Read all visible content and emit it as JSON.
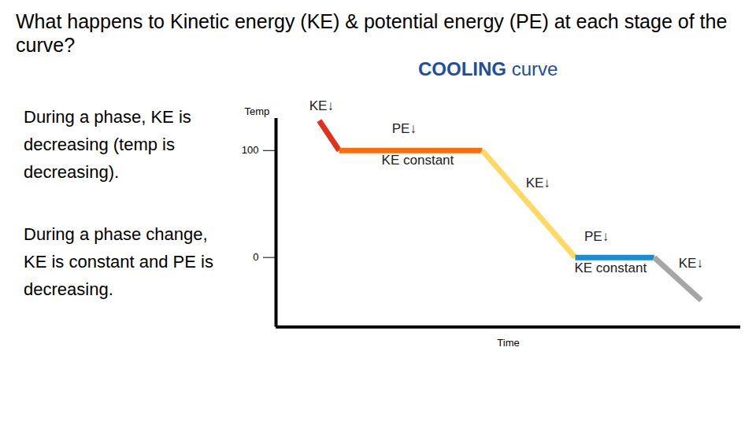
{
  "chart_data": {
    "type": "line",
    "title": "What happens to Kinetic energy (KE) & potential energy (PE) at each stage of the curve?",
    "subtitle": "COOLING curve",
    "notes": [
      "During a phase, KE is decreasing (temp is decreasing).",
      "During a phase change, KE is constant and PE is decreasing."
    ],
    "y_label": "Temp",
    "x_label": "Time",
    "x": [
      9.3,
      13.6,
      44.4,
      64.4,
      81.4,
      91.5
    ],
    "values": [
      128,
      100,
      100,
      0,
      0,
      -40
    ],
    "colors": [
      "#e2301f",
      "#f36f12",
      "#ffd966",
      "#1f8ad0",
      "#a6a6a6"
    ],
    "xlim": [
      0,
      100
    ],
    "ylim": [
      -65,
      130
    ],
    "yticks": [
      0,
      100
    ],
    "tick_labels": "y",
    "annotations": [
      {
        "text": "KE↓",
        "x": 9.8,
        "y": 141.6
      },
      {
        "text": "PE↓",
        "x": 27.6,
        "y": 120.4
      },
      {
        "text": "KE constant",
        "x": 30.5,
        "y": 91.2
      },
      {
        "text": "KE↓",
        "x": 56.4,
        "y": 69.3
      },
      {
        "text": "PE↓",
        "x": 69,
        "y": 19.7
      },
      {
        "text": "KE constant",
        "x": 72,
        "y": -9.5
      },
      {
        "text": "KE↓",
        "x": 89.3,
        "y": -5.1
      }
    ]
  }
}
